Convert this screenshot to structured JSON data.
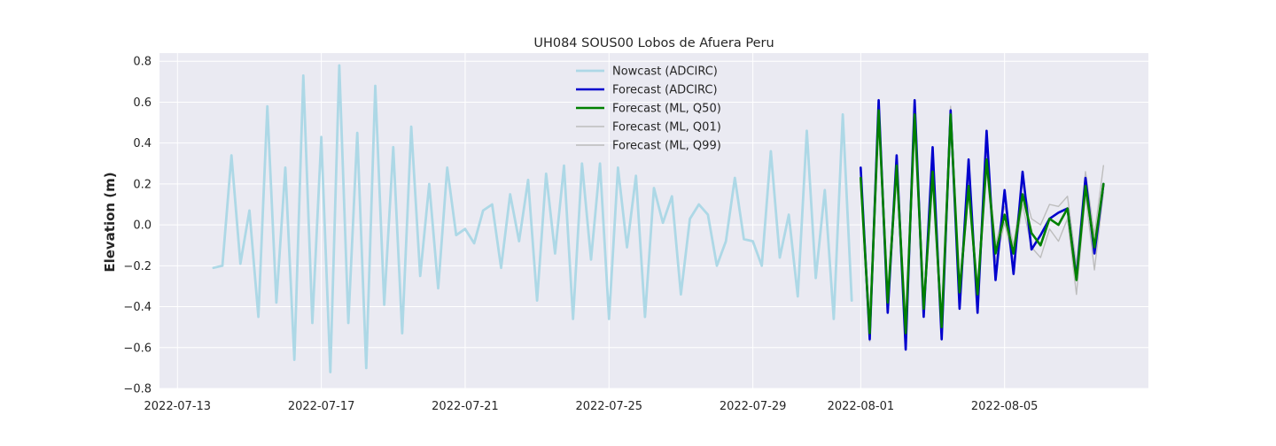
{
  "chart_data": {
    "type": "line",
    "title": "UH084 SOUS00 Lobos de Afuera Peru",
    "xlabel": "",
    "ylabel": "Elevation (m)",
    "xlim": [
      "2022-07-12T12:00",
      "2022-08-09T00:00"
    ],
    "ylim": [
      -0.8,
      0.84
    ],
    "x_ticks": [
      "2022-07-13",
      "2022-07-17",
      "2022-07-21",
      "2022-07-25",
      "2022-07-29",
      "2022-08-01",
      "2022-08-05"
    ],
    "y_ticks": [
      -0.8,
      -0.6,
      -0.4,
      -0.2,
      0.0,
      0.2,
      0.4,
      0.6,
      0.8
    ],
    "y_tick_labels": [
      "−0.8",
      "−0.6",
      "−0.4",
      "−0.2",
      "0.0",
      "0.2",
      "0.4",
      "0.6",
      "0.8"
    ],
    "grid": true,
    "legend_position": "top-center",
    "series": [
      {
        "name": "Nowcast (ADCIRC)",
        "color": "#add8e6",
        "width": 2.8,
        "x": [
          "2022-07-14T00:00",
          "2022-07-14T06:00",
          "2022-07-14T12:00",
          "2022-07-14T18:00",
          "2022-07-15T00:00",
          "2022-07-15T06:00",
          "2022-07-15T12:00",
          "2022-07-15T18:00",
          "2022-07-16T00:00",
          "2022-07-16T06:00",
          "2022-07-16T12:00",
          "2022-07-16T18:00",
          "2022-07-17T00:00",
          "2022-07-17T06:00",
          "2022-07-17T12:00",
          "2022-07-17T18:00",
          "2022-07-18T00:00",
          "2022-07-18T06:00",
          "2022-07-18T12:00",
          "2022-07-18T18:00",
          "2022-07-19T00:00",
          "2022-07-19T06:00",
          "2022-07-19T12:00",
          "2022-07-19T18:00",
          "2022-07-20T00:00",
          "2022-07-20T06:00",
          "2022-07-20T12:00",
          "2022-07-20T18:00",
          "2022-07-21T00:00",
          "2022-07-21T06:00",
          "2022-07-21T12:00",
          "2022-07-21T18:00",
          "2022-07-22T00:00",
          "2022-07-22T06:00",
          "2022-07-22T12:00",
          "2022-07-22T18:00",
          "2022-07-23T00:00",
          "2022-07-23T06:00",
          "2022-07-23T12:00",
          "2022-07-23T18:00",
          "2022-07-24T00:00",
          "2022-07-24T06:00",
          "2022-07-24T12:00",
          "2022-07-24T18:00",
          "2022-07-25T00:00",
          "2022-07-25T06:00",
          "2022-07-25T12:00",
          "2022-07-25T18:00",
          "2022-07-26T00:00",
          "2022-07-26T06:00",
          "2022-07-26T12:00",
          "2022-07-26T18:00",
          "2022-07-27T00:00",
          "2022-07-27T06:00",
          "2022-07-27T12:00",
          "2022-07-27T18:00",
          "2022-07-28T00:00",
          "2022-07-28T06:00",
          "2022-07-28T12:00",
          "2022-07-28T18:00",
          "2022-07-29T00:00",
          "2022-07-29T06:00",
          "2022-07-29T12:00",
          "2022-07-29T18:00",
          "2022-07-30T00:00",
          "2022-07-30T06:00",
          "2022-07-30T12:00",
          "2022-07-30T18:00",
          "2022-07-31T00:00",
          "2022-07-31T06:00",
          "2022-07-31T12:00",
          "2022-07-31T18:00"
        ],
        "y": [
          -0.21,
          -0.2,
          0.34,
          -0.19,
          0.07,
          -0.45,
          0.58,
          -0.38,
          0.28,
          -0.66,
          0.73,
          -0.48,
          0.43,
          -0.72,
          0.78,
          -0.48,
          0.45,
          -0.7,
          0.68,
          -0.39,
          0.38,
          -0.53,
          0.48,
          -0.25,
          0.2,
          -0.31,
          0.28,
          -0.05,
          -0.02,
          -0.09,
          0.07,
          0.1,
          -0.21,
          0.15,
          -0.08,
          0.22,
          -0.37,
          0.25,
          -0.14,
          0.29,
          -0.46,
          0.3,
          -0.17,
          0.3,
          -0.46,
          0.28,
          -0.11,
          0.24,
          -0.45,
          0.18,
          0.01,
          0.14,
          -0.34,
          0.03,
          0.1,
          0.05,
          -0.2,
          -0.08,
          0.23,
          -0.07,
          -0.08,
          -0.2,
          0.36,
          -0.16,
          0.05,
          -0.35,
          0.46,
          -0.26,
          0.17,
          -0.46,
          0.54,
          -0.37
        ]
      },
      {
        "name": "Forecast (ML, Q01)",
        "color": "#bdbdbd",
        "width": 1.4,
        "x": [
          "2022-08-01T00:00",
          "2022-08-01T06:00",
          "2022-08-01T12:00",
          "2022-08-01T18:00",
          "2022-08-02T00:00",
          "2022-08-02T06:00",
          "2022-08-02T12:00",
          "2022-08-02T18:00",
          "2022-08-03T00:00",
          "2022-08-03T06:00",
          "2022-08-03T12:00",
          "2022-08-03T18:00",
          "2022-08-04T00:00",
          "2022-08-04T06:00",
          "2022-08-04T12:00",
          "2022-08-04T18:00",
          "2022-08-05T00:00",
          "2022-08-05T06:00",
          "2022-08-05T12:00",
          "2022-08-05T18:00",
          "2022-08-06T00:00",
          "2022-08-06T06:00",
          "2022-08-06T12:00",
          "2022-08-06T18:00",
          "2022-08-07T00:00",
          "2022-08-07T06:00",
          "2022-08-07T12:00",
          "2022-08-07T18:00"
        ],
        "y": [
          0.19,
          -0.57,
          0.52,
          -0.42,
          0.25,
          -0.56,
          0.5,
          -0.44,
          0.22,
          -0.53,
          0.5,
          -0.37,
          0.16,
          -0.38,
          0.27,
          -0.18,
          0.01,
          -0.18,
          0.1,
          -0.11,
          -0.16,
          -0.02,
          -0.08,
          0.03,
          -0.34,
          0.15,
          -0.22,
          0.16
        ]
      },
      {
        "name": "Forecast (ML, Q99)",
        "color": "#bdbdbd",
        "width": 1.4,
        "x": [
          "2022-08-01T00:00",
          "2022-08-01T06:00",
          "2022-08-01T12:00",
          "2022-08-01T18:00",
          "2022-08-02T00:00",
          "2022-08-02T06:00",
          "2022-08-02T12:00",
          "2022-08-02T18:00",
          "2022-08-03T00:00",
          "2022-08-03T06:00",
          "2022-08-03T12:00",
          "2022-08-03T18:00",
          "2022-08-04T00:00",
          "2022-08-04T06:00",
          "2022-08-04T12:00",
          "2022-08-04T18:00",
          "2022-08-05T00:00",
          "2022-08-05T06:00",
          "2022-08-05T12:00",
          "2022-08-05T18:00",
          "2022-08-06T00:00",
          "2022-08-06T06:00",
          "2022-08-06T12:00",
          "2022-08-06T18:00",
          "2022-08-07T00:00",
          "2022-08-07T06:00",
          "2022-08-07T12:00",
          "2022-08-07T18:00"
        ],
        "y": [
          0.28,
          -0.5,
          0.6,
          -0.35,
          0.33,
          -0.5,
          0.59,
          -0.38,
          0.3,
          -0.47,
          0.58,
          -0.3,
          0.22,
          -0.3,
          0.36,
          -0.1,
          0.09,
          -0.1,
          0.2,
          0.03,
          0.0,
          0.1,
          0.09,
          0.14,
          -0.2,
          0.26,
          -0.05,
          0.29
        ]
      },
      {
        "name": "Forecast (ADCIRC)",
        "color": "#0000cd",
        "width": 2.6,
        "x": [
          "2022-08-01T00:00",
          "2022-08-01T06:00",
          "2022-08-01T12:00",
          "2022-08-01T18:00",
          "2022-08-02T00:00",
          "2022-08-02T06:00",
          "2022-08-02T12:00",
          "2022-08-02T18:00",
          "2022-08-03T00:00",
          "2022-08-03T06:00",
          "2022-08-03T12:00",
          "2022-08-03T18:00",
          "2022-08-04T00:00",
          "2022-08-04T06:00",
          "2022-08-04T12:00",
          "2022-08-04T18:00",
          "2022-08-05T00:00",
          "2022-08-05T06:00",
          "2022-08-05T12:00",
          "2022-08-05T18:00",
          "2022-08-06T00:00",
          "2022-08-06T06:00",
          "2022-08-06T12:00",
          "2022-08-06T18:00",
          "2022-08-07T00:00",
          "2022-08-07T06:00",
          "2022-08-07T12:00",
          "2022-08-07T18:00"
        ],
        "y": [
          0.28,
          -0.56,
          0.61,
          -0.43,
          0.34,
          -0.61,
          0.61,
          -0.45,
          0.38,
          -0.56,
          0.56,
          -0.41,
          0.32,
          -0.43,
          0.46,
          -0.27,
          0.17,
          -0.24,
          0.26,
          -0.12,
          -0.05,
          0.03,
          0.06,
          0.08,
          -0.26,
          0.23,
          -0.14,
          0.2
        ]
      },
      {
        "name": "Forecast (ML, Q50)",
        "color": "#008000",
        "width": 2.6,
        "x": [
          "2022-08-01T00:00",
          "2022-08-01T06:00",
          "2022-08-01T12:00",
          "2022-08-01T18:00",
          "2022-08-02T00:00",
          "2022-08-02T06:00",
          "2022-08-02T12:00",
          "2022-08-02T18:00",
          "2022-08-03T00:00",
          "2022-08-03T06:00",
          "2022-08-03T12:00",
          "2022-08-03T18:00",
          "2022-08-04T00:00",
          "2022-08-04T06:00",
          "2022-08-04T12:00",
          "2022-08-04T18:00",
          "2022-08-05T00:00",
          "2022-08-05T06:00",
          "2022-08-05T12:00",
          "2022-08-05T18:00",
          "2022-08-06T00:00",
          "2022-08-06T06:00",
          "2022-08-06T12:00",
          "2022-08-06T18:00",
          "2022-08-07T00:00",
          "2022-08-07T06:00",
          "2022-08-07T12:00",
          "2022-08-07T18:00"
        ],
        "y": [
          0.23,
          -0.53,
          0.56,
          -0.38,
          0.29,
          -0.53,
          0.54,
          -0.41,
          0.26,
          -0.5,
          0.54,
          -0.33,
          0.19,
          -0.34,
          0.32,
          -0.14,
          0.05,
          -0.14,
          0.15,
          -0.04,
          -0.1,
          0.03,
          0.0,
          0.08,
          -0.27,
          0.19,
          -0.11,
          0.2
        ]
      }
    ],
    "legend": [
      {
        "label": "Nowcast (ADCIRC)",
        "color": "#add8e6",
        "width": 2.8
      },
      {
        "label": "Forecast (ADCIRC)",
        "color": "#0000cd",
        "width": 2.6
      },
      {
        "label": "Forecast (ML, Q50)",
        "color": "#008000",
        "width": 2.6
      },
      {
        "label": "Forecast (ML, Q01)",
        "color": "#bdbdbd",
        "width": 1.4
      },
      {
        "label": "Forecast (ML, Q99)",
        "color": "#bdbdbd",
        "width": 1.4
      }
    ],
    "axes_background": "#eaeaf2",
    "grid_color": "#ffffff"
  }
}
